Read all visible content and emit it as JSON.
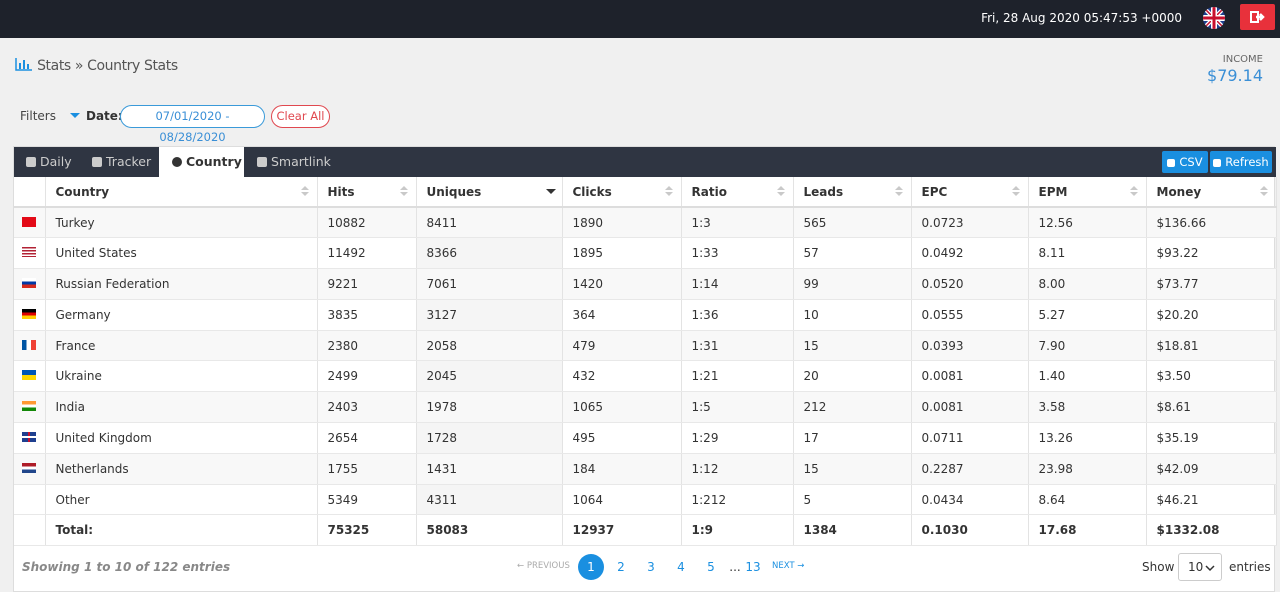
{
  "header": {
    "datetime": "Fri, 28 Aug 2020 05:47:53 +0000"
  },
  "breadcrumb": {
    "section": "Stats",
    "separator": "»",
    "page": "Country Stats"
  },
  "income": {
    "label": "INCOME",
    "value": "$79.14"
  },
  "filters": {
    "label": "Filters",
    "date_label": "Date:",
    "date_range": "07/01/2020 - 08/28/2020",
    "clear": "Clear All"
  },
  "tabs": [
    "Daily",
    "Tracker",
    "Country",
    "Smartlink"
  ],
  "buttons": {
    "csv": "CSV",
    "refresh": "Refresh"
  },
  "table": {
    "columns": [
      "Country",
      "Hits",
      "Uniques",
      "Clicks",
      "Ratio",
      "Leads",
      "EPC",
      "EPM",
      "Money"
    ],
    "rows": [
      [
        "Turkey",
        "10882",
        "8411",
        "1890",
        "1:3",
        "565",
        "0.0723",
        "12.56",
        "$136.66"
      ],
      [
        "United States",
        "11492",
        "8366",
        "1895",
        "1:33",
        "57",
        "0.0492",
        "8.11",
        "$93.22"
      ],
      [
        "Russian Federation",
        "9221",
        "7061",
        "1420",
        "1:14",
        "99",
        "0.0520",
        "8.00",
        "$73.77"
      ],
      [
        "Germany",
        "3835",
        "3127",
        "364",
        "1:36",
        "10",
        "0.0555",
        "5.27",
        "$20.20"
      ],
      [
        "France",
        "2380",
        "2058",
        "479",
        "1:31",
        "15",
        "0.0393",
        "7.90",
        "$18.81"
      ],
      [
        "Ukraine",
        "2499",
        "2045",
        "432",
        "1:21",
        "20",
        "0.0081",
        "1.40",
        "$3.50"
      ],
      [
        "India",
        "2403",
        "1978",
        "1065",
        "1:5",
        "212",
        "0.0081",
        "3.58",
        "$8.61"
      ],
      [
        "United Kingdom",
        "2654",
        "1728",
        "495",
        "1:29",
        "17",
        "0.0711",
        "13.26",
        "$35.19"
      ],
      [
        "Netherlands",
        "1755",
        "1431",
        "184",
        "1:12",
        "15",
        "0.2287",
        "23.98",
        "$42.09"
      ],
      [
        "Other",
        "5349",
        "4311",
        "1064",
        "1:212",
        "5",
        "0.0434",
        "8.64",
        "$46.21"
      ]
    ],
    "total": [
      "Total:",
      "75325",
      "58083",
      "12937",
      "1:9",
      "1384",
      "0.1030",
      "17.68",
      "$1332.08"
    ]
  },
  "footer": {
    "info": "Showing 1 to 10 of 122 entries",
    "pagination": {
      "previous": "← PREVIOUS",
      "pages": [
        "1",
        "2",
        "3",
        "4",
        "5"
      ],
      "ellipsis": "...",
      "last": "13",
      "next": "NEXT →"
    },
    "show": "Show",
    "page_size": "10",
    "entries": "entries"
  }
}
